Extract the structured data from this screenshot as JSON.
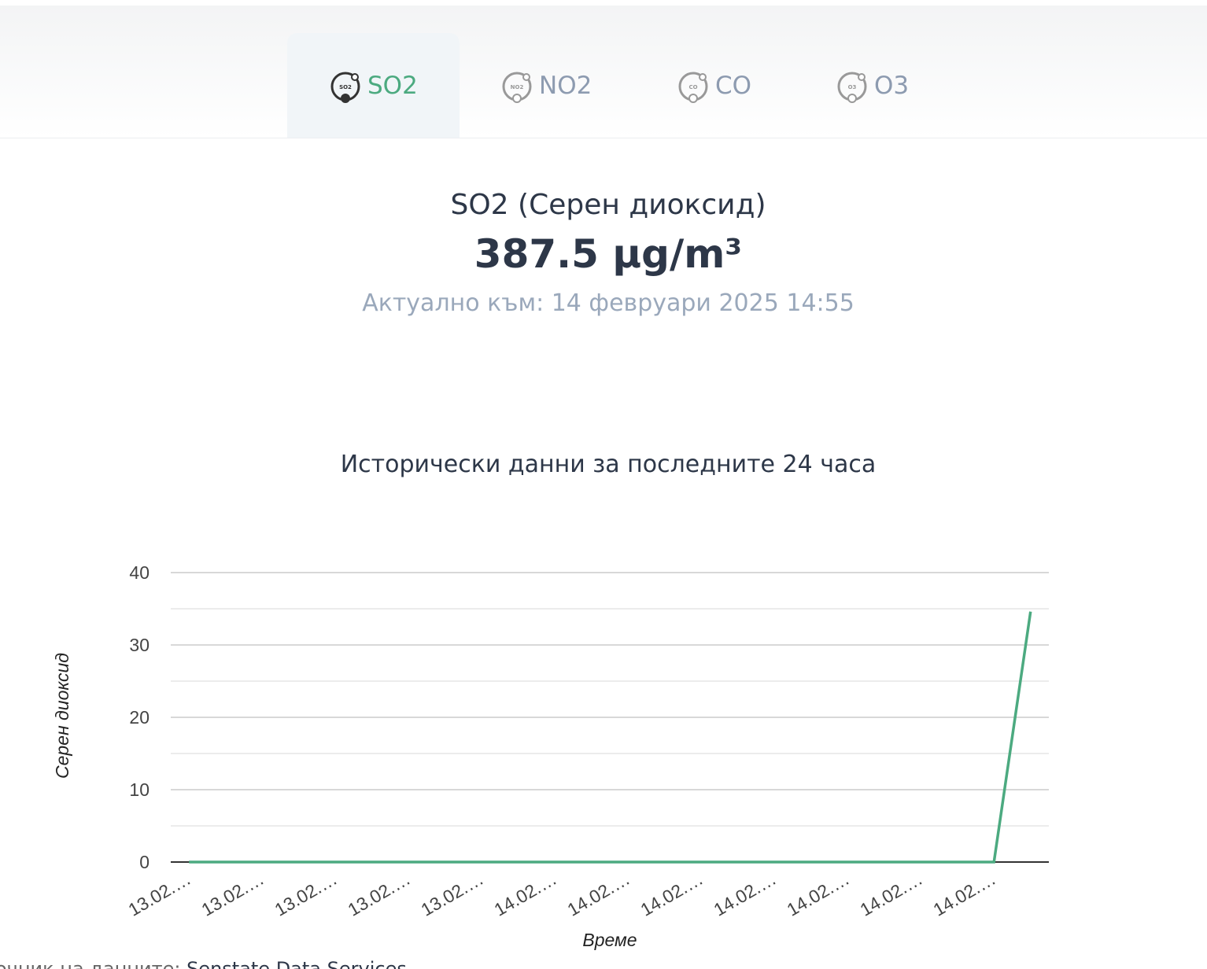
{
  "tabs": [
    {
      "label": "SO2",
      "icon": "SO2",
      "active": true
    },
    {
      "label": "NO2",
      "icon": "NO2",
      "active": false
    },
    {
      "label": "CO",
      "icon": "CO",
      "active": false
    },
    {
      "label": "O3",
      "icon": "O3",
      "active": false
    }
  ],
  "header": {
    "title": "SO2 (Серен диоксид)",
    "value": "387.5 µg/m³",
    "updated": "Актуално към: 14 февруари 2025 14:55"
  },
  "chart_data": {
    "type": "line",
    "title": "Исторически данни за последните 24 часа",
    "x_label": "Време",
    "y_label": "Серен диоксид",
    "categories": [
      "13.02.…",
      null,
      "13.02.…",
      null,
      "13.02.…",
      null,
      "13.02.…",
      null,
      "13.02.…",
      null,
      "14.02.…",
      null,
      "14.02.…",
      null,
      "14.02.…",
      null,
      "14.02.…",
      null,
      "14.02.…",
      null,
      "14.02.…",
      null,
      "14.02.…",
      null
    ],
    "series": [
      {
        "name": "Серен диоксид",
        "color": "#4caa80",
        "values": [
          0,
          0,
          0,
          0,
          0,
          0,
          0,
          0,
          0,
          0,
          0,
          0,
          0,
          0,
          0,
          0,
          0,
          0,
          0,
          0,
          0,
          0,
          0,
          34.6
        ]
      }
    ],
    "ylim": [
      0,
      40
    ],
    "yticks": [
      0,
      10,
      20,
      30,
      40
    ],
    "minor_yticks": [
      5,
      15,
      25,
      35
    ],
    "grid": true
  },
  "footer": {
    "source_label": "очник на данните:",
    "source": "Senstate Data Services"
  }
}
